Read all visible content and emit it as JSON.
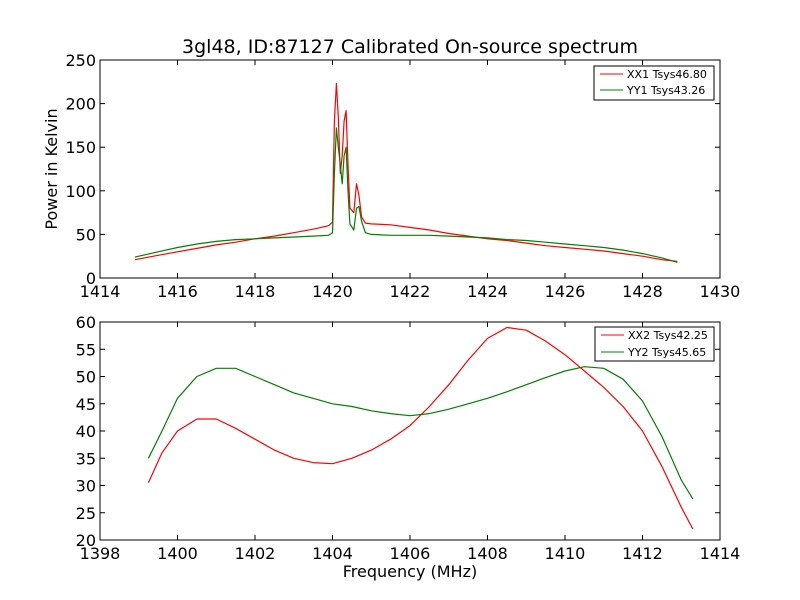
{
  "figure": {
    "title": "3gl48, ID:87127 Calibrated On-source spectrum",
    "xlabel": "Frequency (MHz)"
  },
  "chart_data": [
    {
      "type": "line",
      "title": "",
      "xlabel": "",
      "ylabel": "Power in Kelvin",
      "xlim": [
        1414,
        1430
      ],
      "ylim": [
        0,
        250
      ],
      "xticks": [
        "1414",
        "1416",
        "1418",
        "1420",
        "1422",
        "1424",
        "1426",
        "1428",
        "1430"
      ],
      "yticks": [
        "0",
        "50",
        "100",
        "150",
        "200",
        "250"
      ],
      "grid": false,
      "legend": "top-right",
      "series": [
        {
          "name": "XX1 Tsys46.80",
          "color": "#ff0000",
          "points": [
            [
              1414.9,
              21
            ],
            [
              1415.5,
              26
            ],
            [
              1416,
              30
            ],
            [
              1416.5,
              34
            ],
            [
              1417,
              38
            ],
            [
              1417.5,
              41
            ],
            [
              1418,
              45
            ],
            [
              1418.5,
              48
            ],
            [
              1419,
              52
            ],
            [
              1419.5,
              56
            ],
            [
              1419.9,
              60
            ],
            [
              1420.0,
              64
            ],
            [
              1420.05,
              180
            ],
            [
              1420.1,
              223
            ],
            [
              1420.15,
              185
            ],
            [
              1420.2,
              120
            ],
            [
              1420.25,
              140
            ],
            [
              1420.3,
              180
            ],
            [
              1420.35,
              192
            ],
            [
              1420.4,
              130
            ],
            [
              1420.45,
              80
            ],
            [
              1420.55,
              75
            ],
            [
              1420.62,
              108
            ],
            [
              1420.68,
              95
            ],
            [
              1420.75,
              70
            ],
            [
              1420.85,
              63
            ],
            [
              1421,
              62
            ],
            [
              1421.5,
              61
            ],
            [
              1422,
              58
            ],
            [
              1422.5,
              55
            ],
            [
              1423,
              51
            ],
            [
              1423.5,
              48
            ],
            [
              1424,
              45
            ],
            [
              1424.5,
              43
            ],
            [
              1425,
              40
            ],
            [
              1425.5,
              37
            ],
            [
              1426,
              35
            ],
            [
              1426.5,
              33
            ],
            [
              1427,
              31
            ],
            [
              1427.5,
              28
            ],
            [
              1428,
              25
            ],
            [
              1428.5,
              21
            ],
            [
              1428.9,
              19
            ]
          ]
        },
        {
          "name": "YY1 Tsys43.26",
          "color": "#008000",
          "points": [
            [
              1414.9,
              24
            ],
            [
              1415.5,
              30
            ],
            [
              1416,
              35
            ],
            [
              1416.5,
              39
            ],
            [
              1417,
              42
            ],
            [
              1417.5,
              44
            ],
            [
              1418,
              45
            ],
            [
              1418.5,
              46
            ],
            [
              1419,
              47
            ],
            [
              1419.5,
              48
            ],
            [
              1419.9,
              49
            ],
            [
              1420.0,
              52
            ],
            [
              1420.05,
              120
            ],
            [
              1420.1,
              172
            ],
            [
              1420.15,
              150
            ],
            [
              1420.2,
              130
            ],
            [
              1420.25,
              108
            ],
            [
              1420.3,
              140
            ],
            [
              1420.35,
              150
            ],
            [
              1420.4,
              100
            ],
            [
              1420.45,
              62
            ],
            [
              1420.55,
              55
            ],
            [
              1420.62,
              80
            ],
            [
              1420.68,
              82
            ],
            [
              1420.75,
              65
            ],
            [
              1420.85,
              52
            ],
            [
              1421,
              50
            ],
            [
              1421.5,
              49
            ],
            [
              1422,
              49
            ],
            [
              1422.5,
              49
            ],
            [
              1423,
              48
            ],
            [
              1423.5,
              47
            ],
            [
              1424,
              46
            ],
            [
              1424.5,
              44
            ],
            [
              1425,
              43
            ],
            [
              1425.5,
              41
            ],
            [
              1426,
              39
            ],
            [
              1426.5,
              37
            ],
            [
              1427,
              35
            ],
            [
              1427.5,
              32
            ],
            [
              1428,
              28
            ],
            [
              1428.5,
              23
            ],
            [
              1428.9,
              18
            ]
          ]
        }
      ]
    },
    {
      "type": "line",
      "title": "",
      "xlabel": "Frequency (MHz)",
      "ylabel": "",
      "xlim": [
        1398,
        1414
      ],
      "ylim": [
        20,
        60
      ],
      "xticks": [
        "1398",
        "1400",
        "1402",
        "1404",
        "1406",
        "1408",
        "1410",
        "1412",
        "1414"
      ],
      "yticks": [
        "20",
        "25",
        "30",
        "35",
        "40",
        "45",
        "50",
        "55",
        "60"
      ],
      "grid": false,
      "legend": "top-right",
      "series": [
        {
          "name": "XX2 Tsys42.25",
          "color": "#ff0000",
          "points": [
            [
              1399.25,
              30.5
            ],
            [
              1399.6,
              36
            ],
            [
              1400,
              40
            ],
            [
              1400.5,
              42.2
            ],
            [
              1401,
              42.2
            ],
            [
              1401.5,
              40.5
            ],
            [
              1402,
              38.5
            ],
            [
              1402.5,
              36.5
            ],
            [
              1403,
              35
            ],
            [
              1403.5,
              34.2
            ],
            [
              1404,
              34
            ],
            [
              1404.5,
              35
            ],
            [
              1405,
              36.5
            ],
            [
              1405.5,
              38.5
            ],
            [
              1406,
              41
            ],
            [
              1406.5,
              44.5
            ],
            [
              1407,
              48.5
            ],
            [
              1407.5,
              53
            ],
            [
              1408,
              57
            ],
            [
              1408.5,
              59
            ],
            [
              1409,
              58.5
            ],
            [
              1409.5,
              56.5
            ],
            [
              1410,
              54
            ],
            [
              1410.5,
              51
            ],
            [
              1411,
              48
            ],
            [
              1411.5,
              44.5
            ],
            [
              1412,
              40
            ],
            [
              1412.5,
              33.5
            ],
            [
              1413,
              26
            ],
            [
              1413.3,
              22
            ]
          ]
        },
        {
          "name": "YY2 Tsys45.65",
          "color": "#008000",
          "points": [
            [
              1399.25,
              35
            ],
            [
              1399.6,
              40
            ],
            [
              1400,
              46
            ],
            [
              1400.5,
              50
            ],
            [
              1401,
              51.5
            ],
            [
              1401.5,
              51.5
            ],
            [
              1402,
              50
            ],
            [
              1402.5,
              48.5
            ],
            [
              1403,
              47
            ],
            [
              1403.5,
              46
            ],
            [
              1404,
              45
            ],
            [
              1404.5,
              44.5
            ],
            [
              1405,
              43.7
            ],
            [
              1405.5,
              43.2
            ],
            [
              1406,
              42.8
            ],
            [
              1406.5,
              43.2
            ],
            [
              1407,
              44
            ],
            [
              1407.5,
              45
            ],
            [
              1408,
              46
            ],
            [
              1408.5,
              47.2
            ],
            [
              1409,
              48.5
            ],
            [
              1409.5,
              49.8
            ],
            [
              1410,
              51
            ],
            [
              1410.5,
              51.8
            ],
            [
              1411,
              51.5
            ],
            [
              1411.5,
              49.5
            ],
            [
              1412,
              45.5
            ],
            [
              1412.5,
              39
            ],
            [
              1413,
              31
            ],
            [
              1413.3,
              27.5
            ]
          ]
        }
      ]
    }
  ]
}
